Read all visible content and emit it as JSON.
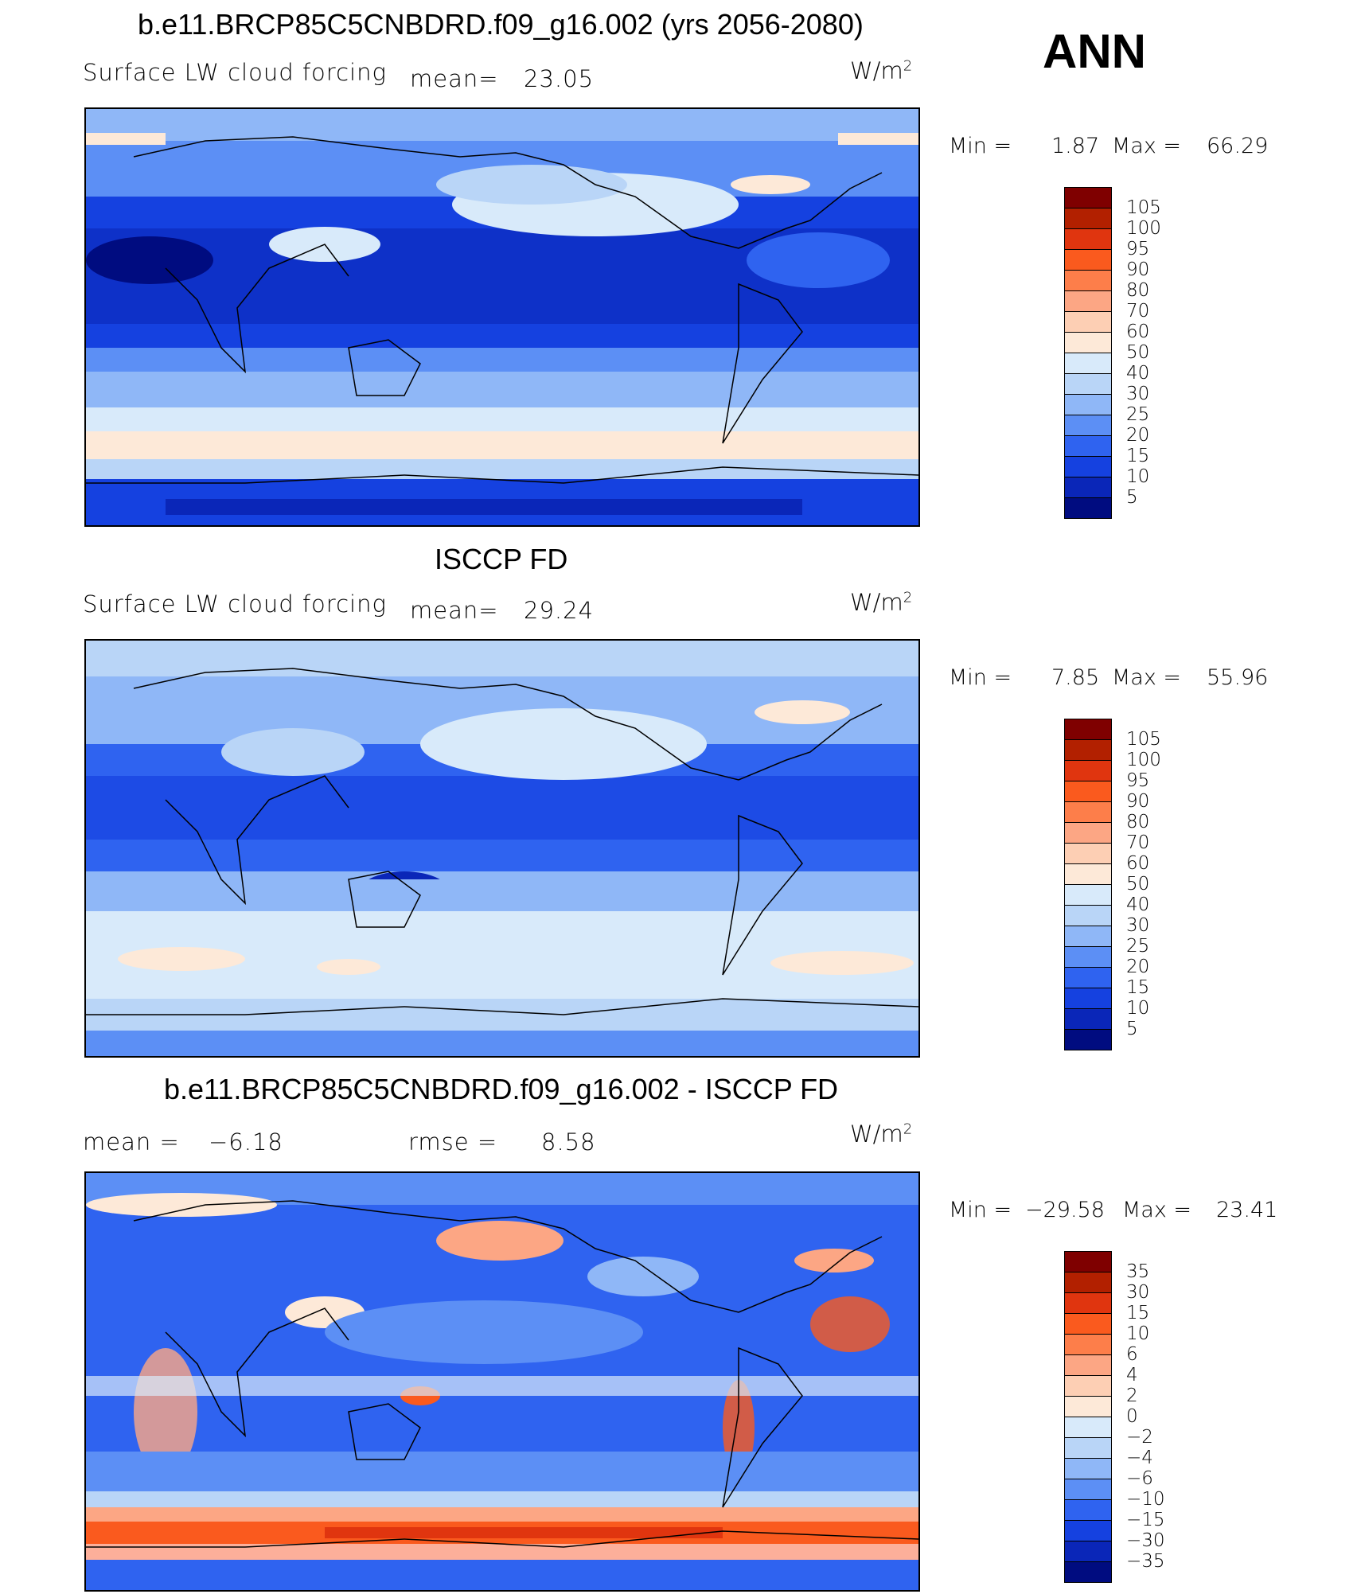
{
  "season": "ANN",
  "units_base": "W/m",
  "units_exp": "2",
  "panels": [
    {
      "title": "b.e11.BRCP85C5CNBDRD.f09_g16.002 (yrs 2056-2080)",
      "subtitle": "Surface LW cloud forcing",
      "stat1": "mean=",
      "stat1_value": "23.05",
      "min_label": "Min =",
      "min_value": "1.87",
      "max_label": "Max =",
      "max_value": "66.29"
    },
    {
      "title": "ISCCP FD",
      "subtitle": "Surface LW cloud forcing",
      "stat1": "mean=",
      "stat1_value": "29.24",
      "min_label": "Min =",
      "min_value": "7.85",
      "max_label": "Max =",
      "max_value": "55.96"
    },
    {
      "title": "b.e11.BRCP85C5CNBDRD.f09_g16.002 - ISCCP FD",
      "stat1": "mean =",
      "stat1_value": "−6.18",
      "stat2": "rmse =",
      "stat2_value": "8.58",
      "min_label": "Min =",
      "min_value": "−29.58",
      "max_label": "Max =",
      "max_value": "23.41"
    }
  ],
  "chart_data": [
    {
      "type": "heatmap",
      "title": "b.e11.BRCP85C5CNBDRD.f09_g16.002 (yrs 2056-2080)",
      "variable": "Surface LW cloud forcing",
      "units": "W/m2",
      "mean": 23.05,
      "min": 1.87,
      "max": 66.29,
      "colorbar_levels": [
        "105",
        "100",
        "95",
        "90",
        "80",
        "70",
        "60",
        "50",
        "40",
        "30",
        "25",
        "20",
        "15",
        "10",
        "5"
      ],
      "colors": [
        "#7f0000",
        "#b22000",
        "#e0350f",
        "#fa5a1e",
        "#fd7e4a",
        "#fca684",
        "#fdcfb4",
        "#fde9d8",
        "#d8eafa",
        "#b9d5f7",
        "#8fb7f7",
        "#5c8ff5",
        "#2f63f0",
        "#1541e0",
        "#0a26b8",
        "#000c80"
      ]
    },
    {
      "type": "heatmap",
      "title": "ISCCP FD",
      "variable": "Surface LW cloud forcing",
      "units": "W/m2",
      "mean": 29.24,
      "min": 7.85,
      "max": 55.96,
      "colorbar_levels": [
        "105",
        "100",
        "95",
        "90",
        "80",
        "70",
        "60",
        "50",
        "40",
        "30",
        "25",
        "20",
        "15",
        "10",
        "5"
      ],
      "colors": [
        "#7f0000",
        "#b22000",
        "#e0350f",
        "#fa5a1e",
        "#fd7e4a",
        "#fca684",
        "#fdcfb4",
        "#fde9d8",
        "#d8eafa",
        "#b9d5f7",
        "#8fb7f7",
        "#5c8ff5",
        "#2f63f0",
        "#1541e0",
        "#0a26b8",
        "#000c80"
      ]
    },
    {
      "type": "heatmap",
      "title": "b.e11.BRCP85C5CNBDRD.f09_g16.002 - ISCCP FD",
      "units": "W/m2",
      "mean": -6.18,
      "rmse": 8.58,
      "min": -29.58,
      "max": 23.41,
      "colorbar_levels": [
        "35",
        "30",
        "15",
        "10",
        "6",
        "4",
        "2",
        "0",
        "−2",
        "−4",
        "−6",
        "−10",
        "−15",
        "−30",
        "−35"
      ],
      "colors": [
        "#7f0000",
        "#b22000",
        "#e0350f",
        "#fa5a1e",
        "#fd7e4a",
        "#fca684",
        "#fdcfb4",
        "#fde9d8",
        "#d8eafa",
        "#b9d5f7",
        "#8fb7f7",
        "#5c8ff5",
        "#2f63f0",
        "#1541e0",
        "#0a26b8",
        "#000c80"
      ]
    }
  ]
}
